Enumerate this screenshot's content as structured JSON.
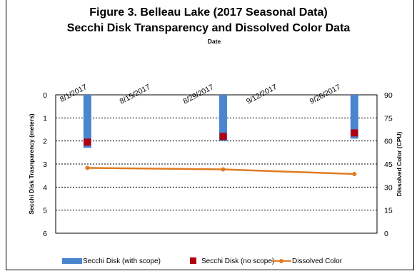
{
  "chart_data": {
    "type": "bar",
    "title": "Figure 3. Belleau Lake (2017 Seasonal Data)",
    "subtitle": "Secchi Disk Transparency and Dissolved Color Data",
    "xlabel": "Date",
    "ylabel": "Secchi Disk Trasnparency (meters)",
    "y2label": "Dissolved Color (CPU)",
    "x_ticks": [
      "8/1/2017",
      "8/15/2017",
      "8/29/2017",
      "9/12/2017",
      "9/26/2017"
    ],
    "x_axis_position": "top",
    "ylim": [
      0,
      6
    ],
    "y_inverted": true,
    "y_ticks": [
      0,
      1,
      2,
      3,
      4,
      5,
      6
    ],
    "y2lim": [
      0,
      90
    ],
    "y2_ticks": [
      90,
      75,
      60,
      45,
      30,
      15,
      0
    ],
    "grid": true,
    "legend_position": "bottom",
    "series": [
      {
        "name": "Secchi Disk (with scope)",
        "type": "bar",
        "axis": "y",
        "color": "#4a86d0",
        "points": [
          {
            "x": "8/1/2017",
            "y": 2.3
          },
          {
            "x": "8/31/2017",
            "y": 2.0
          },
          {
            "x": "9/29/2017",
            "y": 1.9
          }
        ]
      },
      {
        "name": "Secchi Disk (no scope)",
        "type": "marker",
        "axis": "y",
        "color": "#b00010",
        "points": [
          {
            "x": "8/1/2017",
            "y": 2.05
          },
          {
            "x": "8/31/2017",
            "y": 1.8
          },
          {
            "x": "9/29/2017",
            "y": 1.65
          }
        ]
      },
      {
        "name": "Dissolved Color",
        "type": "line",
        "axis": "y2",
        "color": "#e07b22",
        "points": [
          {
            "x": "8/1/2017",
            "y": 42.5
          },
          {
            "x": "8/31/2017",
            "y": 41.5
          },
          {
            "x": "9/29/2017",
            "y": 38.5
          }
        ]
      }
    ]
  }
}
